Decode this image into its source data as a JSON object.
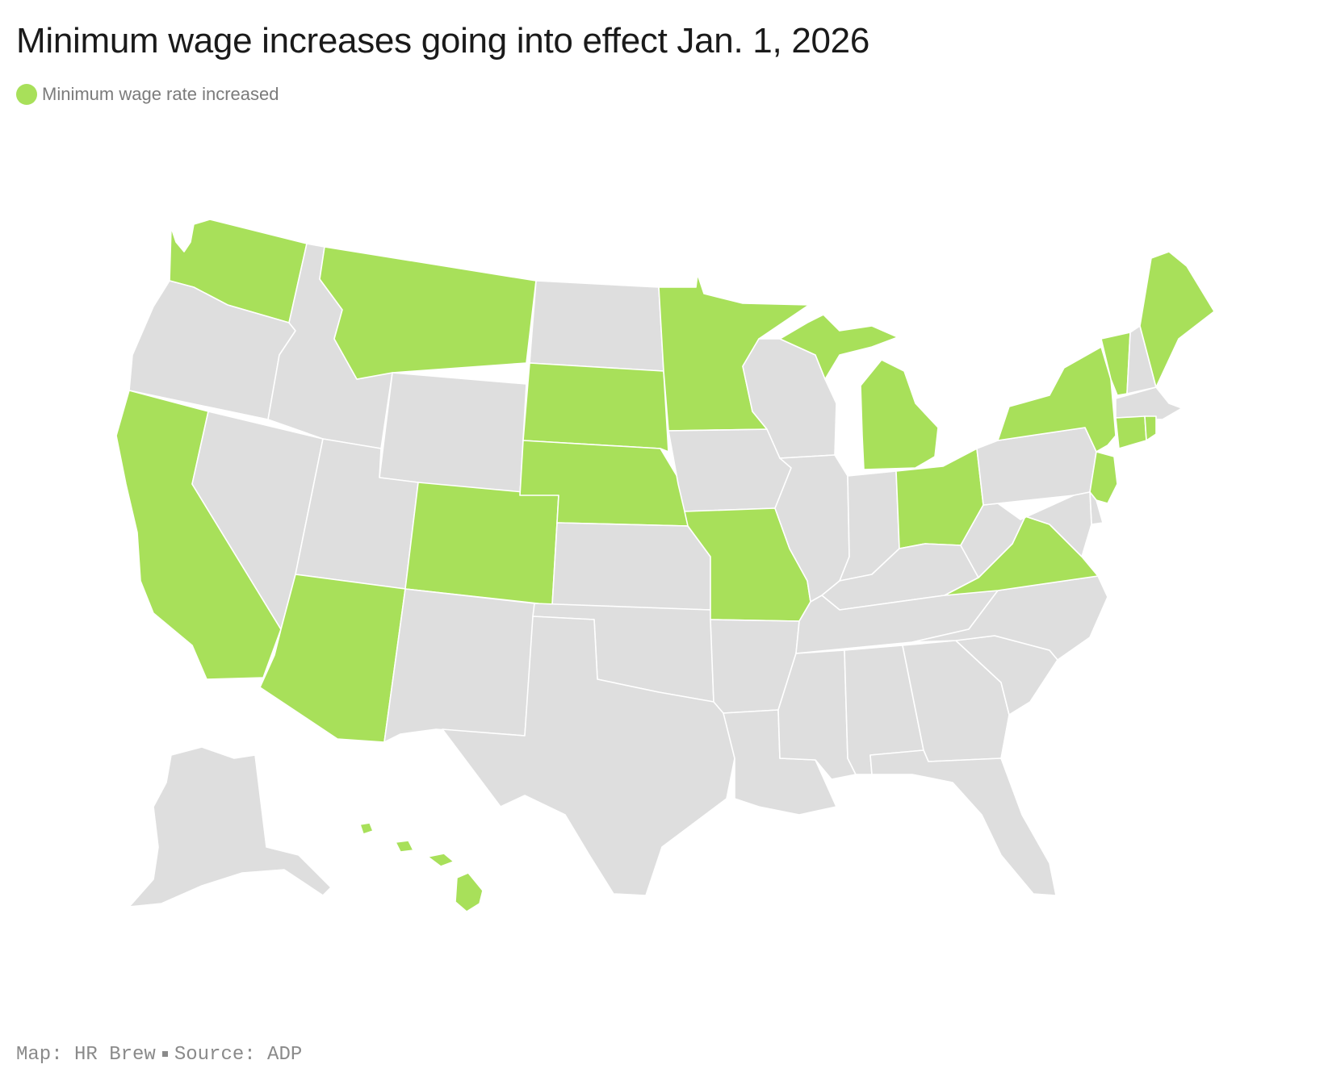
{
  "title": "Minimum wage increases going into effect Jan. 1, 2026",
  "legend": {
    "label": "Minimum wage rate increased",
    "color": "#a8e05a"
  },
  "colors": {
    "increased": "#a8e05a",
    "unchanged": "#dedede",
    "border": "#ffffff"
  },
  "footer": {
    "map_credit": "Map: HR Brew",
    "source": "Source: ADP"
  },
  "map_data": {
    "type": "choropleth",
    "region": "United States",
    "category": "Minimum wage rate increased",
    "increased": [
      "AK_none",
      "WA",
      "MT",
      "CA",
      "AZ",
      "CO",
      "SD",
      "NE",
      "MN",
      "MO",
      "MI",
      "OH",
      "NY",
      "VT",
      "ME",
      "CT",
      "RI",
      "NJ",
      "VA",
      "HI"
    ],
    "states": [
      {
        "id": "WA",
        "increased": true
      },
      {
        "id": "OR",
        "increased": false
      },
      {
        "id": "CA",
        "increased": true
      },
      {
        "id": "NV",
        "increased": false
      },
      {
        "id": "ID",
        "increased": false
      },
      {
        "id": "MT",
        "increased": true
      },
      {
        "id": "WY",
        "increased": false
      },
      {
        "id": "UT",
        "increased": false
      },
      {
        "id": "AZ",
        "increased": true
      },
      {
        "id": "CO",
        "increased": true
      },
      {
        "id": "NM",
        "increased": false
      },
      {
        "id": "ND",
        "increased": false
      },
      {
        "id": "SD",
        "increased": true
      },
      {
        "id": "NE",
        "increased": true
      },
      {
        "id": "KS",
        "increased": false
      },
      {
        "id": "OK",
        "increased": false
      },
      {
        "id": "TX",
        "increased": false
      },
      {
        "id": "MN",
        "increased": true
      },
      {
        "id": "IA",
        "increased": false
      },
      {
        "id": "MO",
        "increased": true
      },
      {
        "id": "AR",
        "increased": false
      },
      {
        "id": "LA",
        "increased": false
      },
      {
        "id": "WI",
        "increased": false
      },
      {
        "id": "IL",
        "increased": false
      },
      {
        "id": "MI",
        "increased": true
      },
      {
        "id": "IN",
        "increased": false
      },
      {
        "id": "OH",
        "increased": true
      },
      {
        "id": "KY",
        "increased": false
      },
      {
        "id": "TN",
        "increased": false
      },
      {
        "id": "MS",
        "increased": false
      },
      {
        "id": "AL",
        "increased": false
      },
      {
        "id": "GA",
        "increased": false
      },
      {
        "id": "FL",
        "increased": false
      },
      {
        "id": "SC",
        "increased": false
      },
      {
        "id": "NC",
        "increased": false
      },
      {
        "id": "VA",
        "increased": true
      },
      {
        "id": "WV",
        "increased": false
      },
      {
        "id": "PA",
        "increased": false
      },
      {
        "id": "NY",
        "increased": true
      },
      {
        "id": "VT",
        "increased": true
      },
      {
        "id": "NH",
        "increased": false
      },
      {
        "id": "ME",
        "increased": true
      },
      {
        "id": "MA",
        "increased": false
      },
      {
        "id": "RI",
        "increased": true
      },
      {
        "id": "CT",
        "increased": true
      },
      {
        "id": "NJ",
        "increased": true
      },
      {
        "id": "DE",
        "increased": false
      },
      {
        "id": "MD",
        "increased": false
      },
      {
        "id": "AK",
        "increased": false
      },
      {
        "id": "HI",
        "increased": true
      }
    ]
  }
}
